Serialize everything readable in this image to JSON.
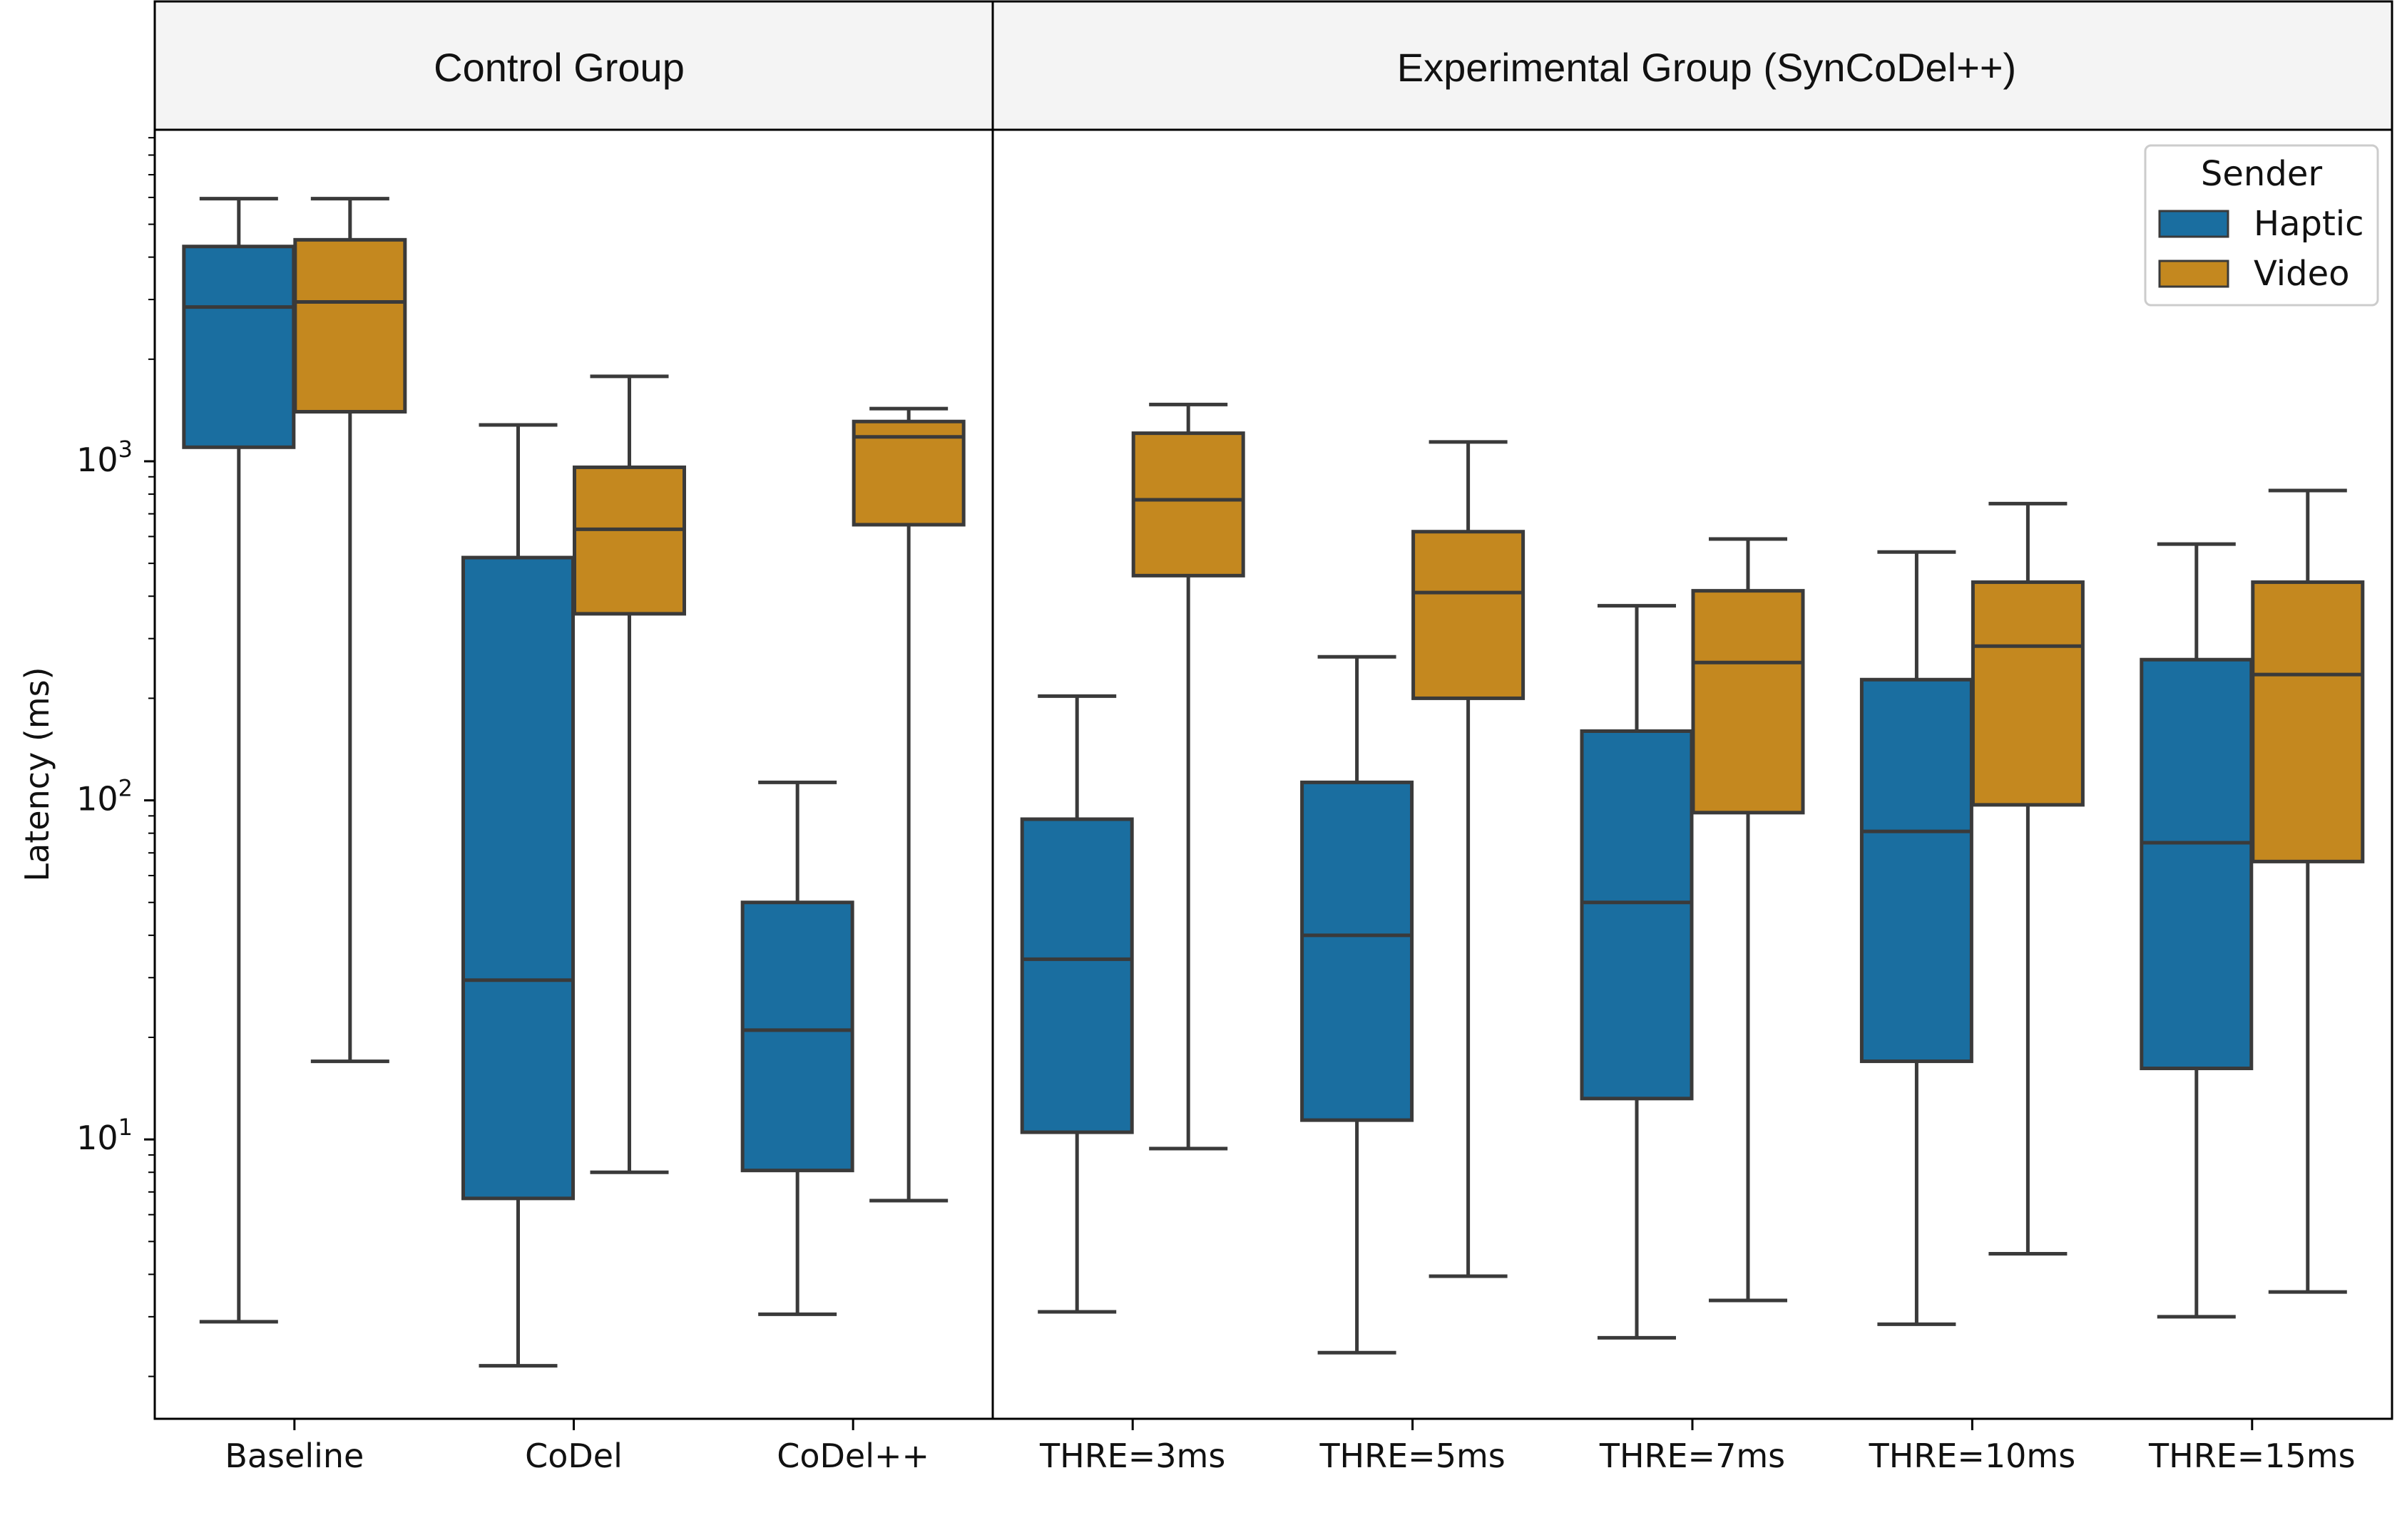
{
  "chart_data": {
    "type": "box",
    "panels": [
      {
        "title": "Control Group",
        "categories": [
          "Baseline",
          "CoDel",
          "CoDel++"
        ]
      },
      {
        "title": "Experimental Group (SynCoDel++)",
        "categories": [
          "THRE=3ms",
          "THRE=5ms",
          "THRE=7ms",
          "THRE=10ms",
          "THRE=15ms"
        ]
      }
    ],
    "ylabel": "Latency (ms)",
    "yscale": "log",
    "ylim": [
      1.5,
      9500
    ],
    "yticks": [
      {
        "value": 10,
        "base": "10",
        "exp": "1"
      },
      {
        "value": 100,
        "base": "10",
        "exp": "2"
      },
      {
        "value": 1000,
        "base": "10",
        "exp": "3"
      }
    ],
    "legend": {
      "title": "Sender",
      "placement": "top-right"
    },
    "series": [
      {
        "name": "Haptic",
        "color": "#1a6ea0",
        "boxes": {
          "Baseline": {
            "whislo": 2.9,
            "q1": 1100,
            "med": 2850,
            "q3": 4300,
            "whishi": 5950
          },
          "CoDel": {
            "whislo": 2.15,
            "q1": 6.7,
            "med": 29.5,
            "q3": 520,
            "whishi": 1280
          },
          "CoDel++": {
            "whislo": 3.05,
            "q1": 8.1,
            "med": 21,
            "q3": 50,
            "whishi": 113
          },
          "THRE=3ms": {
            "whislo": 3.1,
            "q1": 10.5,
            "med": 34,
            "q3": 88,
            "whishi": 203
          },
          "THRE=5ms": {
            "whislo": 2.35,
            "q1": 11.4,
            "med": 40,
            "q3": 113,
            "whishi": 265
          },
          "THRE=7ms": {
            "whislo": 2.6,
            "q1": 13.2,
            "med": 50,
            "q3": 160,
            "whishi": 375
          },
          "THRE=10ms": {
            "whislo": 2.85,
            "q1": 17,
            "med": 81,
            "q3": 227,
            "whishi": 540
          },
          "THRE=15ms": {
            "whislo": 3.0,
            "q1": 16.2,
            "med": 75,
            "q3": 260,
            "whishi": 570
          }
        }
      },
      {
        "name": "Video",
        "color": "#c4881f",
        "boxes": {
          "Baseline": {
            "whislo": 17,
            "q1": 1400,
            "med": 2950,
            "q3": 4500,
            "whishi": 5950
          },
          "CoDel": {
            "whislo": 8,
            "q1": 355,
            "med": 630,
            "q3": 960,
            "whishi": 1780
          },
          "CoDel++": {
            "whislo": 6.6,
            "q1": 650,
            "med": 1180,
            "q3": 1310,
            "whishi": 1430
          },
          "THRE=3ms": {
            "whislo": 9.4,
            "q1": 460,
            "med": 770,
            "q3": 1210,
            "whishi": 1470
          },
          "THRE=5ms": {
            "whislo": 3.95,
            "q1": 200,
            "med": 410,
            "q3": 620,
            "whishi": 1140
          },
          "THRE=7ms": {
            "whislo": 3.35,
            "q1": 92,
            "med": 255,
            "q3": 415,
            "whishi": 590
          },
          "THRE=10ms": {
            "whislo": 4.6,
            "q1": 97,
            "med": 285,
            "q3": 440,
            "whishi": 750
          },
          "THRE=15ms": {
            "whislo": 3.55,
            "q1": 66,
            "med": 235,
            "q3": 440,
            "whishi": 820
          }
        }
      }
    ]
  }
}
